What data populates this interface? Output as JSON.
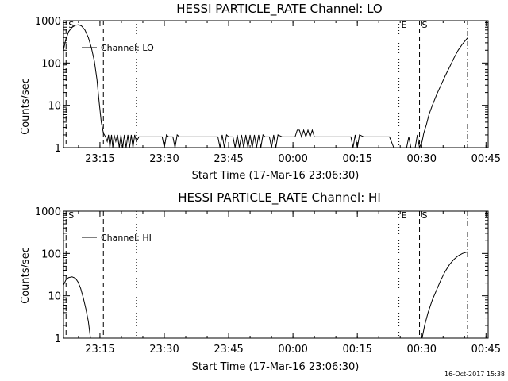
{
  "timestamp": "16-Oct-2017 15:38",
  "chart_data": [
    {
      "type": "line",
      "title": "HESSI PARTICLE_RATE Channel: LO",
      "xlabel": "Start Time (17-Mar-16 23:06:30)",
      "ylabel": "Counts/sec",
      "y_scale": "log",
      "ylim": [
        1,
        1000
      ],
      "xlim_minutes": [
        0,
        99
      ],
      "x_ticks": [
        {
          "label": "23:15",
          "min": 8.5
        },
        {
          "label": "23:30",
          "min": 23.5
        },
        {
          "label": "23:45",
          "min": 38.5
        },
        {
          "label": "00:00",
          "min": 53.5
        },
        {
          "label": "00:15",
          "min": 68.5
        },
        {
          "label": "00:30",
          "min": 83.5
        },
        {
          "label": "00:45",
          "min": 98.5
        }
      ],
      "y_ticks": [
        {
          "label": "1",
          "value": 1
        },
        {
          "label": "10",
          "value": 10
        },
        {
          "label": "100",
          "value": 100
        },
        {
          "label": "1000",
          "value": 1000
        }
      ],
      "legend": {
        "label": "Channel: LO",
        "position": "top-left"
      },
      "markers": [
        {
          "min": 0.6,
          "style": "dashed",
          "label": "S"
        },
        {
          "min": 9.3,
          "style": "dashed",
          "label": ""
        },
        {
          "min": 17.0,
          "style": "dotted",
          "label": ""
        },
        {
          "min": 78.2,
          "style": "dotted",
          "label": "E"
        },
        {
          "min": 83.0,
          "style": "dashed",
          "label": "S"
        },
        {
          "min": 94.2,
          "style": "dashdot",
          "label": ""
        }
      ],
      "series": [
        {
          "name": "Channel: LO",
          "points": [
            [
              0.0,
              200
            ],
            [
              0.5,
              350
            ],
            [
              1.2,
              550
            ],
            [
              2.0,
              700
            ],
            [
              2.8,
              780
            ],
            [
              3.5,
              800
            ],
            [
              4.2,
              750
            ],
            [
              5.0,
              600
            ],
            [
              5.8,
              400
            ],
            [
              6.5,
              230
            ],
            [
              7.2,
              110
            ],
            [
              7.8,
              40
            ],
            [
              8.3,
              12
            ],
            [
              8.8,
              4
            ],
            [
              9.3,
              2.2
            ],
            [
              9.8,
              1.8
            ],
            [
              10.2,
              1.4
            ],
            [
              10.5,
              2
            ],
            [
              10.8,
              1
            ],
            [
              11.2,
              2
            ],
            [
              11.5,
              1
            ],
            [
              11.8,
              2
            ],
            [
              12.2,
              1.4
            ],
            [
              12.6,
              2
            ],
            [
              13.0,
              1
            ],
            [
              13.4,
              2
            ],
            [
              13.8,
              1
            ],
            [
              14.2,
              2
            ],
            [
              14.6,
              1
            ],
            [
              15.0,
              2
            ],
            [
              15.4,
              1
            ],
            [
              15.8,
              2
            ],
            [
              16.2,
              1
            ],
            [
              16.6,
              2
            ],
            [
              17.0,
              1.4
            ],
            [
              17.6,
              1.8
            ],
            [
              18.4,
              1.8
            ],
            [
              19.0,
              1.8
            ],
            [
              20.0,
              1.8
            ],
            [
              21.0,
              1.8
            ],
            [
              22.0,
              1.8
            ],
            [
              23.0,
              1.8
            ],
            [
              23.5,
              1
            ],
            [
              24.0,
              2
            ],
            [
              24.5,
              1.8
            ],
            [
              25.5,
              1.8
            ],
            [
              26.0,
              1
            ],
            [
              26.5,
              2
            ],
            [
              27.0,
              1.8
            ],
            [
              28.0,
              1.8
            ],
            [
              29.0,
              1.8
            ],
            [
              30.0,
              1.8
            ],
            [
              31.0,
              1.8
            ],
            [
              32.0,
              1.8
            ],
            [
              33.0,
              1.8
            ],
            [
              34.0,
              1.8
            ],
            [
              35.0,
              1.8
            ],
            [
              36.0,
              1.8
            ],
            [
              36.5,
              1
            ],
            [
              37.0,
              2
            ],
            [
              37.5,
              1
            ],
            [
              38.0,
              2
            ],
            [
              38.5,
              1.8
            ],
            [
              39.5,
              1.8
            ],
            [
              40.0,
              1
            ],
            [
              40.5,
              2
            ],
            [
              41.0,
              1
            ],
            [
              41.5,
              2
            ],
            [
              42.0,
              1
            ],
            [
              42.5,
              2
            ],
            [
              43.0,
              1
            ],
            [
              43.5,
              2
            ],
            [
              44.0,
              1
            ],
            [
              44.5,
              2
            ],
            [
              45.0,
              1
            ],
            [
              45.5,
              2
            ],
            [
              46.0,
              1
            ],
            [
              46.5,
              2
            ],
            [
              47.0,
              1.8
            ],
            [
              48.0,
              1.8
            ],
            [
              48.5,
              1
            ],
            [
              49.0,
              2
            ],
            [
              49.5,
              1
            ],
            [
              50.0,
              2
            ],
            [
              51.0,
              1.8
            ],
            [
              52.0,
              1.8
            ],
            [
              53.0,
              1.8
            ],
            [
              54.0,
              1.8
            ],
            [
              54.5,
              2.6
            ],
            [
              55.0,
              2.6
            ],
            [
              55.5,
              1.8
            ],
            [
              56.0,
              2.6
            ],
            [
              56.5,
              1.8
            ],
            [
              57.0,
              2.6
            ],
            [
              57.5,
              1.8
            ],
            [
              58.0,
              2.6
            ],
            [
              58.5,
              1.8
            ],
            [
              59.0,
              1.8
            ],
            [
              60.0,
              1.8
            ],
            [
              61.0,
              1.8
            ],
            [
              62.0,
              1.8
            ],
            [
              63.0,
              1.8
            ],
            [
              64.0,
              1.8
            ],
            [
              65.0,
              1.8
            ],
            [
              66.0,
              1.8
            ],
            [
              67.0,
              1.8
            ],
            [
              67.5,
              1
            ],
            [
              68.0,
              2
            ],
            [
              68.5,
              1
            ],
            [
              69.0,
              2
            ],
            [
              70.0,
              1.8
            ],
            [
              71.0,
              1.8
            ],
            [
              72.0,
              1.8
            ],
            [
              73.0,
              1.8
            ],
            [
              74.0,
              1.8
            ],
            [
              75.0,
              1.8
            ],
            [
              76.0,
              1.8
            ],
            [
              77.0,
              1
            ],
            [
              78.0,
              1
            ],
            [
              79.0,
              1
            ],
            [
              80.0,
              1
            ],
            [
              80.5,
              1.8
            ],
            [
              81.0,
              1
            ],
            [
              82.0,
              1
            ],
            [
              82.5,
              2
            ],
            [
              83.0,
              1
            ],
            [
              83.6,
              1.4
            ],
            [
              84.0,
              2.2
            ],
            [
              84.6,
              3.5
            ],
            [
              85.2,
              6
            ],
            [
              86.0,
              10
            ],
            [
              87.0,
              18
            ],
            [
              88.0,
              30
            ],
            [
              89.0,
              50
            ],
            [
              90.0,
              80
            ],
            [
              91.0,
              130
            ],
            [
              92.0,
              200
            ],
            [
              93.0,
              280
            ],
            [
              94.0,
              370
            ],
            [
              94.3,
              400
            ]
          ]
        }
      ]
    },
    {
      "type": "line",
      "title": "HESSI PARTICLE_RATE Channel: HI",
      "xlabel": "Start Time (17-Mar-16 23:06:30)",
      "ylabel": "Counts/sec",
      "y_scale": "log",
      "ylim": [
        1,
        1000
      ],
      "xlim_minutes": [
        0,
        99
      ],
      "x_ticks": [
        {
          "label": "23:15",
          "min": 8.5
        },
        {
          "label": "23:30",
          "min": 23.5
        },
        {
          "label": "23:45",
          "min": 38.5
        },
        {
          "label": "00:00",
          "min": 53.5
        },
        {
          "label": "00:15",
          "min": 68.5
        },
        {
          "label": "00:30",
          "min": 83.5
        },
        {
          "label": "00:45",
          "min": 98.5
        }
      ],
      "y_ticks": [
        {
          "label": "1",
          "value": 1
        },
        {
          "label": "10",
          "value": 10
        },
        {
          "label": "100",
          "value": 100
        },
        {
          "label": "1000",
          "value": 1000
        }
      ],
      "legend": {
        "label": "Channel: HI",
        "position": "top-left"
      },
      "markers": [
        {
          "min": 0.6,
          "style": "dashed",
          "label": "S"
        },
        {
          "min": 9.3,
          "style": "dashed",
          "label": ""
        },
        {
          "min": 17.0,
          "style": "dotted",
          "label": ""
        },
        {
          "min": 78.2,
          "style": "dotted",
          "label": "E"
        },
        {
          "min": 83.0,
          "style": "dashed",
          "label": "S"
        },
        {
          "min": 94.2,
          "style": "dashdot",
          "label": ""
        }
      ],
      "series": [
        {
          "name": "Channel: HI",
          "points": [
            [
              0.0,
              18
            ],
            [
              0.6,
              24
            ],
            [
              1.2,
              27
            ],
            [
              2.0,
              28
            ],
            [
              2.8,
              26
            ],
            [
              3.4,
              21
            ],
            [
              4.0,
              15
            ],
            [
              4.6,
              9
            ],
            [
              5.2,
              5
            ],
            [
              5.8,
              2.5
            ],
            [
              6.3,
              1
            ]
          ]
        },
        {
          "name": "Channel: HI",
          "points": [
            [
              83.6,
              1
            ],
            [
              84.2,
              2
            ],
            [
              85.0,
              4
            ],
            [
              86.0,
              8
            ],
            [
              87.0,
              14
            ],
            [
              88.0,
              24
            ],
            [
              89.0,
              38
            ],
            [
              90.0,
              55
            ],
            [
              91.0,
              72
            ],
            [
              92.0,
              88
            ],
            [
              93.0,
              100
            ],
            [
              94.0,
              108
            ],
            [
              94.3,
              110
            ]
          ]
        }
      ]
    }
  ]
}
